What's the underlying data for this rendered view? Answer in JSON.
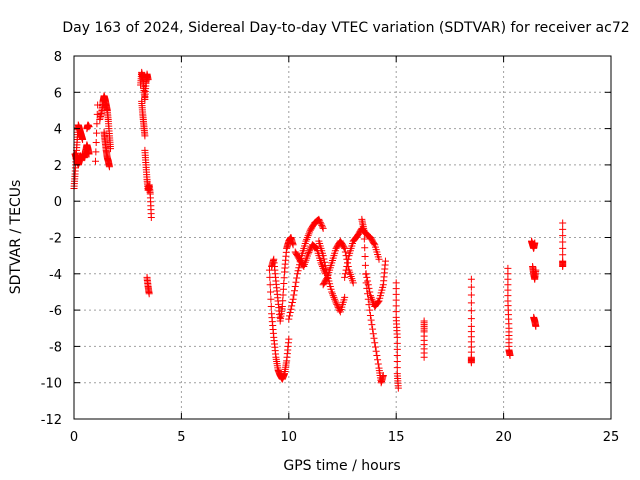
{
  "chart_data": {
    "type": "scatter",
    "title": "Day 163 of 2024, Sidereal Day-to-day VTEC variation (SDTVAR) for receiver ac72",
    "xlabel": "GPS time / hours",
    "ylabel": "SDTVAR / TECUs",
    "xlim": [
      0,
      25
    ],
    "ylim": [
      -12,
      8
    ],
    "xticks": [
      0,
      5,
      10,
      15,
      20,
      25
    ],
    "yticks": [
      -12,
      -10,
      -8,
      -6,
      -4,
      -2,
      0,
      2,
      4,
      6,
      8
    ],
    "grid": true,
    "marker": "+",
    "color": "#ff0000",
    "series": [
      {
        "name": "SDTVAR",
        "segments": [
          {
            "x": [
              0.0,
              0.05,
              0.1,
              0.15,
              0.2,
              0.25,
              0.3,
              0.35,
              0.4
            ],
            "y": [
              0.7,
              1.5,
              2.5,
              3.4,
              4.2,
              4.0,
              3.8,
              3.6,
              3.4
            ]
          },
          {
            "x": [
              0.05,
              0.1,
              0.15,
              0.2,
              0.25,
              0.3,
              0.35,
              0.4,
              0.45,
              0.5
            ],
            "y": [
              2.6,
              2.4,
              2.2,
              2.0,
              2.2,
              2.5,
              2.3,
              2.6,
              2.4,
              2.6
            ]
          },
          {
            "x": [
              0.5,
              0.55,
              0.6,
              0.65,
              0.7
            ],
            "y": [
              2.4,
              2.8,
              3.1,
              2.9,
              2.6
            ]
          },
          {
            "x": [
              0.6,
              0.65,
              0.7
            ],
            "y": [
              4.0,
              4.2,
              4.1
            ]
          },
          {
            "x": [
              1.0,
              1.1
            ],
            "y": [
              2.2,
              5.3
            ]
          },
          {
            "x": [
              1.2,
              1.3,
              1.35,
              1.4,
              1.45,
              1.5,
              1.55,
              1.6,
              1.65,
              1.7
            ],
            "y": [
              4.5,
              5.0,
              5.5,
              5.8,
              5.6,
              5.3,
              5.0,
              4.4,
              3.6,
              2.9
            ]
          },
          {
            "x": [
              1.4,
              1.45,
              1.5,
              1.55,
              1.6,
              1.65
            ],
            "y": [
              3.8,
              3.3,
              2.8,
              2.4,
              2.2,
              1.9
            ]
          },
          {
            "x": [
              3.1,
              3.15,
              3.2,
              3.25,
              3.3,
              3.35,
              3.4,
              3.45
            ],
            "y": [
              6.4,
              7.1,
              6.8,
              6.2,
              5.6,
              6.5,
              7.0,
              6.7
            ]
          },
          {
            "x": [
              3.15,
              3.2,
              3.25,
              3.3
            ],
            "y": [
              5.5,
              4.8,
              4.2,
              3.6
            ]
          },
          {
            "x": [
              3.3,
              3.35,
              3.4,
              3.45,
              3.5,
              3.55,
              3.6
            ],
            "y": [
              2.8,
              2.0,
              1.2,
              0.6,
              0.9,
              0.4,
              -0.9
            ]
          },
          {
            "x": [
              3.4,
              3.45,
              3.5
            ],
            "y": [
              -4.2,
              -4.7,
              -5.1
            ]
          },
          {
            "x": [
              9.1,
              9.2,
              9.3,
              9.4,
              9.5,
              9.6,
              9.7,
              9.8,
              9.9,
              10.0
            ],
            "y": [
              -3.8,
              -6.2,
              -7.5,
              -8.6,
              -9.3,
              -9.6,
              -9.8,
              -9.5,
              -8.8,
              -7.6
            ]
          },
          {
            "x": [
              9.2,
              9.3,
              9.4,
              9.5,
              9.6,
              9.7,
              9.8,
              9.9,
              10.0,
              10.1,
              10.2
            ],
            "y": [
              -3.6,
              -3.2,
              -4.4,
              -5.5,
              -6.6,
              -5.8,
              -3.9,
              -2.6,
              -2.2,
              -2.0,
              -2.4
            ]
          },
          {
            "x": [
              10.0,
              10.2,
              10.4,
              10.6,
              10.8,
              11.0,
              11.2,
              11.4,
              11.6
            ],
            "y": [
              -6.5,
              -5.4,
              -4.0,
              -3.0,
              -2.2,
              -1.6,
              -1.2,
              -1.0,
              -1.5
            ]
          },
          {
            "x": [
              10.3,
              10.5,
              10.7,
              10.9,
              11.1,
              11.3,
              11.5,
              11.7
            ],
            "y": [
              -2.8,
              -3.2,
              -3.6,
              -2.9,
              -2.4,
              -2.6,
              -3.4,
              -4.0
            ]
          },
          {
            "x": [
              11.4,
              11.6,
              11.8,
              12.0,
              12.2,
              12.4,
              12.6
            ],
            "y": [
              -2.2,
              -3.0,
              -4.1,
              -5.0,
              -5.6,
              -6.1,
              -5.3
            ]
          },
          {
            "x": [
              11.6,
              11.8,
              12.0,
              12.2,
              12.4,
              12.6,
              12.8,
              13.0
            ],
            "y": [
              -4.6,
              -4.2,
              -3.4,
              -2.6,
              -2.2,
              -2.6,
              -3.8,
              -4.5
            ]
          },
          {
            "x": [
              12.6,
              12.8,
              13.0,
              13.2,
              13.4,
              13.6,
              13.8,
              14.0,
              14.2
            ],
            "y": [
              -4.2,
              -3.0,
              -2.2,
              -1.9,
              -1.5,
              -1.8,
              -2.0,
              -2.4,
              -3.2
            ]
          },
          {
            "x": [
              13.4,
              13.5,
              13.6,
              13.8,
              14.0,
              14.2,
              14.3,
              14.4
            ],
            "y": [
              -1.0,
              -1.6,
              -4.5,
              -6.3,
              -7.8,
              -9.2,
              -10.0,
              -9.6
            ]
          },
          {
            "x": [
              13.6,
              13.8,
              14.0,
              14.2,
              14.4,
              14.5
            ],
            "y": [
              -4.0,
              -5.2,
              -5.8,
              -5.5,
              -4.6,
              -3.3
            ]
          },
          {
            "x": [
              15.0,
              15.0,
              15.05,
              15.05,
              15.1
            ],
            "y": [
              -4.5,
              -6.4,
              -7.5,
              -9.5,
              -10.3
            ]
          },
          {
            "x": [
              16.3,
              16.3,
              16.3
            ],
            "y": [
              -6.6,
              -7.2,
              -8.6
            ]
          },
          {
            "x": [
              18.5,
              18.5,
              18.5,
              18.5
            ],
            "y": [
              -4.3,
              -6.9,
              -8.6,
              -8.9
            ]
          },
          {
            "x": [
              20.2,
              20.2,
              20.25,
              20.25,
              20.3
            ],
            "y": [
              -3.7,
              -5.5,
              -7.0,
              -8.2,
              -8.5
            ]
          },
          {
            "x": [
              21.3,
              21.35,
              21.4,
              21.45
            ],
            "y": [
              -2.2,
              -2.4,
              -2.6,
              -2.3
            ]
          },
          {
            "x": [
              21.35,
              21.4,
              21.45,
              21.5
            ],
            "y": [
              -3.6,
              -4.0,
              -4.3,
              -3.8
            ]
          },
          {
            "x": [
              21.4,
              21.45,
              21.5
            ],
            "y": [
              -6.4,
              -6.6,
              -6.9
            ]
          },
          {
            "x": [
              22.75,
              22.75,
              22.75
            ],
            "y": [
              -1.2,
              -3.3,
              -3.6
            ]
          }
        ]
      }
    ]
  }
}
